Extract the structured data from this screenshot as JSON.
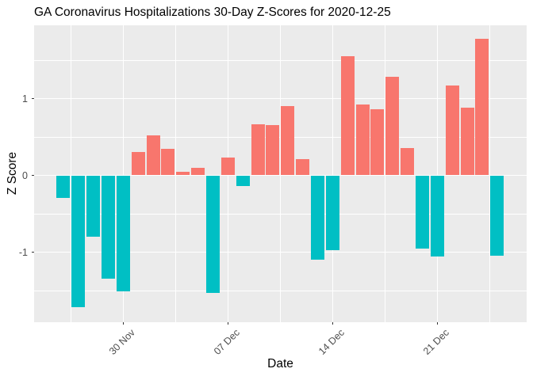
{
  "header": {
    "title": "GA Coronavirus Hospitalizations 30-Day Z-Scores for 2020-12-25"
  },
  "axes": {
    "x_label": "Date",
    "y_label": "Z Score",
    "x_ticks": [
      {
        "label": "30 Nov",
        "index": 4
      },
      {
        "label": "07 Dec",
        "index": 11
      },
      {
        "label": "14 Dec",
        "index": 18
      },
      {
        "label": "21 Dec",
        "index": 25
      }
    ],
    "x_minor_indices": [
      0.5,
      7.5,
      14.5,
      21.5,
      28.5
    ],
    "y_ticks": [
      {
        "label": "1",
        "value": 1
      },
      {
        "label": "0",
        "value": 0
      },
      {
        "label": "-1",
        "value": -1
      }
    ],
    "y_minor_values": [
      1.5,
      0.5,
      -0.5,
      -1.5
    ]
  },
  "colors": {
    "positive_bar": "#F8766D",
    "negative_bar": "#00BFC4",
    "panel_background": "#EBEBEB",
    "gridline": "#FFFFFF",
    "tick_text": "#4D4D4D",
    "title_text": "#000000"
  },
  "chart_data": {
    "type": "bar",
    "title": "GA Coronavirus Hospitalizations 30-Day Z-Scores for 2020-12-25",
    "xlabel": "Date",
    "ylabel": "Z Score",
    "ylim": [
      -1.9,
      1.95
    ],
    "grid": true,
    "legend": false,
    "x_tick_labels": [
      "30 Nov",
      "07 Dec",
      "14 Dec",
      "21 Dec"
    ],
    "y_tick_values": [
      -1,
      0,
      1
    ],
    "color_rule": "positive bars salmon #F8766D, negative bars teal #00BFC4",
    "x": [
      "2020-11-26",
      "2020-11-27",
      "2020-11-28",
      "2020-11-29",
      "2020-11-30",
      "2020-12-01",
      "2020-12-02",
      "2020-12-03",
      "2020-12-04",
      "2020-12-05",
      "2020-12-06",
      "2020-12-07",
      "2020-12-08",
      "2020-12-09",
      "2020-12-10",
      "2020-12-11",
      "2020-12-12",
      "2020-12-13",
      "2020-12-14",
      "2020-12-15",
      "2020-12-16",
      "2020-12-17",
      "2020-12-18",
      "2020-12-19",
      "2020-12-20",
      "2020-12-21",
      "2020-12-22",
      "2020-12-23",
      "2020-12-24",
      "2020-12-25"
    ],
    "values": [
      -0.29,
      -1.72,
      -0.8,
      -1.35,
      -1.51,
      0.3,
      0.52,
      0.35,
      0.05,
      0.1,
      -1.53,
      0.23,
      -0.14,
      0.67,
      0.65,
      0.9,
      0.21,
      -1.1,
      -0.97,
      1.55,
      0.92,
      0.86,
      1.28,
      0.36,
      -0.95,
      -1.06,
      1.17,
      0.88,
      1.78,
      -1.05
    ]
  }
}
